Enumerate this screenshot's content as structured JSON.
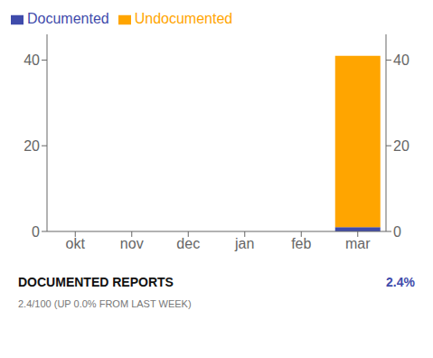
{
  "chart_data": {
    "type": "bar",
    "title": "DOCUMENTED REPORTS",
    "subtitle": "2.4/100 (UP 0.0% FROM LAST WEEK)",
    "annotations": [
      "2.4%"
    ],
    "categories": [
      "okt",
      "nov",
      "dec",
      "jan",
      "feb",
      "mar"
    ],
    "series": [
      {
        "name": "Documented",
        "color": "#3f4bab",
        "values": [
          0,
          0,
          0,
          0,
          0,
          1
        ]
      },
      {
        "name": "Undocumented",
        "color": "#FFA500",
        "values": [
          0,
          0,
          0,
          0,
          0,
          40
        ]
      }
    ],
    "stacked": true,
    "ylim": [
      0,
      46
    ],
    "yticks": [
      0,
      20,
      40
    ],
    "y2lim": [
      0,
      46
    ],
    "y2ticks": [
      0,
      20,
      40
    ],
    "grid": false,
    "legend": "upper left"
  }
}
